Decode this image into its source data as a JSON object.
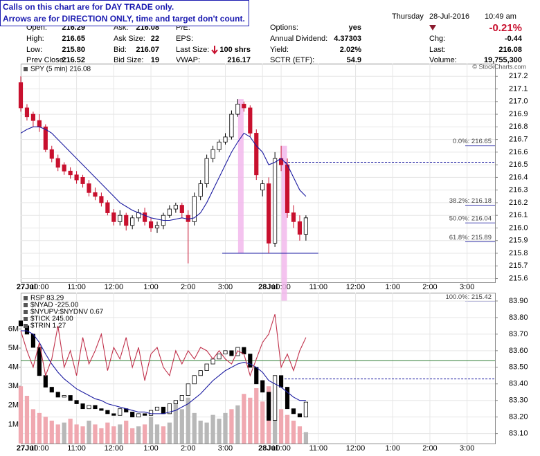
{
  "header": {
    "notes": [
      "Calls on this chart are for DAY TRADE only.",
      "Arrows are for DIRECTION ONLY, time and target don't count."
    ],
    "columns": [
      [
        {
          "label": "Open:",
          "value": "216.29"
        },
        {
          "label": "High:",
          "value": "216.65"
        },
        {
          "label": "Low:",
          "value": "215.80"
        },
        {
          "label": "Prev Close:",
          "value": "216.52"
        }
      ],
      [
        {
          "label": "Ask:",
          "value": "216.08"
        },
        {
          "label": "Ask Size:",
          "value": "22"
        },
        {
          "label": "Bid:",
          "value": "216.07"
        },
        {
          "label": "Bid Size:",
          "value": "19"
        }
      ],
      [
        {
          "label": "P/E:"
        },
        {
          "label": "EPS:"
        },
        {
          "label": "Last Size:",
          "value": "100 shrs"
        },
        {
          "label": "VWAP:",
          "value": "216.17"
        }
      ],
      [
        {
          "label": "Options:",
          "value": "yes"
        },
        {
          "label": "Annual Dividend:",
          "value": "4.37303"
        },
        {
          "label": "Yield:",
          "value": "2.02%"
        },
        {
          "label": "SCTR (ETF):",
          "value": "54.9"
        }
      ]
    ],
    "date": [
      "Thursday",
      "28-Jul-2016",
      "10:49 am"
    ],
    "change_pct": "-0.21%",
    "right": [
      {
        "label": "Chg:",
        "value": "-0.44"
      },
      {
        "label": "Last:",
        "value": "216.08"
      },
      {
        "label": "Volume:",
        "value": "19,755,300"
      }
    ],
    "credit": "© StockCharts.com"
  },
  "chart_data": [
    {
      "type": "candlestick",
      "legend": [
        "SPY (5 min) 216.08"
      ],
      "x": [
        0,
        2,
        4,
        6,
        8,
        10,
        12,
        14,
        16,
        18,
        20,
        22,
        24,
        26,
        28,
        30,
        32,
        34,
        36,
        38,
        40,
        42,
        44,
        46,
        48,
        50,
        52,
        54,
        56,
        58,
        60,
        62,
        64,
        66,
        68,
        70,
        72,
        74,
        76,
        78,
        80,
        82,
        84,
        86,
        88,
        90,
        92
      ],
      "open": [
        217.15,
        216.95,
        216.9,
        216.85,
        216.8,
        216.62,
        216.55,
        216.5,
        216.45,
        216.42,
        216.4,
        216.35,
        216.28,
        216.25,
        216.2,
        216.12,
        216.05,
        216.1,
        216.02,
        216.08,
        216.12,
        216.05,
        216.0,
        216.02,
        216.1,
        216.15,
        216.18,
        216.1,
        216.05,
        216.25,
        216.35,
        216.55,
        216.62,
        216.68,
        216.72,
        216.9,
        216.98,
        216.95,
        216.75,
        216.3,
        216.35,
        215.88,
        216.55,
        216.5,
        216.12,
        216.05,
        215.95
      ],
      "high": [
        217.2,
        216.98,
        216.92,
        216.9,
        216.82,
        216.65,
        216.58,
        216.52,
        216.48,
        216.45,
        216.42,
        216.38,
        216.32,
        216.28,
        216.22,
        216.15,
        216.14,
        216.12,
        216.1,
        216.15,
        216.16,
        216.08,
        216.05,
        216.12,
        216.18,
        216.2,
        216.2,
        216.14,
        216.28,
        216.38,
        216.58,
        216.65,
        216.7,
        216.75,
        216.93,
        217.02,
        217.0,
        216.97,
        216.78,
        216.38,
        216.4,
        216.6,
        216.65,
        216.55,
        216.18,
        216.1,
        216.1
      ],
      "low": [
        216.92,
        216.85,
        216.8,
        216.76,
        216.6,
        216.52,
        216.45,
        216.42,
        216.39,
        216.35,
        216.32,
        216.25,
        216.22,
        216.17,
        216.1,
        216.02,
        216.02,
        215.98,
        215.99,
        216.05,
        216.02,
        215.97,
        215.96,
        215.99,
        216.08,
        216.12,
        216.08,
        215.72,
        216.02,
        216.22,
        216.32,
        216.52,
        216.6,
        216.66,
        216.7,
        216.88,
        216.92,
        216.72,
        216.38,
        216.25,
        215.8,
        215.85,
        216.45,
        216.08,
        216.0,
        215.9,
        215.9
      ],
      "close": [
        216.95,
        216.88,
        216.85,
        216.8,
        216.62,
        216.55,
        216.48,
        216.45,
        216.42,
        216.38,
        216.35,
        216.28,
        216.25,
        216.2,
        216.12,
        216.05,
        216.1,
        216.02,
        216.08,
        216.12,
        216.05,
        216.0,
        216.02,
        216.1,
        216.15,
        216.18,
        216.12,
        216.05,
        216.25,
        216.35,
        216.55,
        216.62,
        216.68,
        216.72,
        216.9,
        216.98,
        216.95,
        216.75,
        216.42,
        216.35,
        215.88,
        216.55,
        216.5,
        216.12,
        216.05,
        215.95,
        216.08
      ],
      "up_color": "#ffffff",
      "down_color": "#c8102e",
      "lines_series": [
        {
          "color": "#1a1aa0",
          "values": [
            216.75,
            216.78,
            216.8,
            216.8,
            216.78,
            216.75,
            216.7,
            216.65,
            216.6,
            216.55,
            216.5,
            216.45,
            216.4,
            216.35,
            216.3,
            216.25,
            216.2,
            216.17,
            216.14,
            216.12,
            216.1,
            216.08,
            216.07,
            216.06,
            216.06,
            216.07,
            216.08,
            216.07,
            216.08,
            216.12,
            216.2,
            216.3,
            216.4,
            216.5,
            216.6,
            216.68,
            216.75,
            216.72,
            216.65,
            216.6,
            216.5,
            216.52,
            216.55,
            216.5,
            216.4,
            216.3,
            216.25
          ]
        }
      ],
      "xlim": [
        0,
        153
      ],
      "xticks": [
        {
          "value": 0,
          "label": "27Jul"
        },
        {
          "value": 6,
          "label": "10:00"
        },
        {
          "value": 18,
          "label": "11:00"
        },
        {
          "value": 30,
          "label": "12:00"
        },
        {
          "value": 42,
          "label": "1:00"
        },
        {
          "value": 54,
          "label": "2:00"
        },
        {
          "value": 66,
          "label": "3:00"
        },
        {
          "value": 78,
          "label": "28Jul"
        },
        {
          "value": 84,
          "label": "10:00"
        },
        {
          "value": 96,
          "label": "11:00"
        },
        {
          "value": 108,
          "label": "12:00"
        },
        {
          "value": 120,
          "label": "1:00"
        },
        {
          "value": 132,
          "label": "2:00"
        },
        {
          "value": 144,
          "label": "3:00"
        }
      ],
      "ylim": [
        215.57,
        217.3
      ],
      "yticks": [
        217.2,
        217.1,
        {
          "value": 217,
          "label": "217.0"
        },
        216.9,
        216.8,
        216.7,
        216.6,
        216.5,
        216.4,
        216.3,
        216.2,
        216.1,
        {
          "value": 216,
          "label": "216.0"
        },
        215.9,
        215.8,
        215.7,
        215.6
      ],
      "grid": true,
      "levels": [
        {
          "value": 216.65,
          "label": "0.0%: 216.65"
        },
        {
          "value": 216.18,
          "label": "38.2%: 216.18"
        },
        {
          "value": 216.04,
          "label": "50.0%: 216.04"
        },
        {
          "value": 215.89,
          "label": "61.8%: 215.89"
        },
        {
          "value": 215.42,
          "label": "100.0%: 215.42"
        }
      ],
      "hlines": [
        {
          "y": 215.8,
          "x": [
            65,
            96
          ],
          "dash": false,
          "color": "#1a1aa0"
        },
        {
          "y": 216.52,
          "x": [
            84,
            153
          ],
          "dash": true,
          "color": "#1a1aa0"
        }
      ],
      "highlights": [
        {
          "x": 71,
          "y": [
            215.8,
            217.02
          ]
        },
        {
          "x": 85,
          "y": [
            215.42,
            216.65
          ]
        }
      ]
    },
    {
      "type": "candlestick",
      "legend": [
        "RSP 83.29",
        "$NYAD -225.00",
        "$NYUPV:$NYDNV 0.67",
        "$TICK 245.00",
        "$TRIN 1.27"
      ],
      "x": [
        0,
        2,
        4,
        6,
        8,
        10,
        12,
        14,
        16,
        18,
        20,
        22,
        24,
        26,
        28,
        30,
        32,
        34,
        36,
        38,
        40,
        42,
        44,
        46,
        48,
        50,
        52,
        54,
        56,
        58,
        60,
        62,
        64,
        66,
        68,
        70,
        72,
        74,
        76,
        78,
        80,
        82,
        84,
        86,
        88,
        90,
        92
      ],
      "open": [
        83.78,
        83.75,
        83.7,
        83.62,
        83.45,
        83.38,
        83.35,
        83.32,
        83.33,
        83.3,
        83.28,
        83.25,
        83.27,
        83.25,
        83.24,
        83.22,
        83.21,
        83.25,
        83.23,
        83.2,
        83.22,
        83.21,
        83.24,
        83.26,
        83.22,
        83.28,
        83.3,
        83.33,
        83.4,
        83.45,
        83.48,
        83.52,
        83.55,
        83.58,
        83.6,
        83.57,
        83.62,
        83.58,
        83.5,
        83.42,
        83.35,
        83.18,
        83.45,
        83.38,
        83.25,
        83.22,
        83.2
      ],
      "close": [
        83.75,
        83.7,
        83.62,
        83.45,
        83.38,
        83.35,
        83.32,
        83.33,
        83.3,
        83.28,
        83.25,
        83.27,
        83.25,
        83.24,
        83.22,
        83.21,
        83.25,
        83.23,
        83.2,
        83.22,
        83.21,
        83.24,
        83.26,
        83.22,
        83.28,
        83.3,
        83.33,
        83.4,
        83.45,
        83.48,
        83.52,
        83.55,
        83.58,
        83.6,
        83.57,
        83.62,
        83.58,
        83.5,
        83.4,
        83.35,
        83.18,
        83.45,
        83.38,
        83.25,
        83.22,
        83.2,
        83.29
      ],
      "up_color": "#ffffff",
      "down_color": "#000000",
      "lines_series": [
        {
          "color": "#1a1aa0",
          "values": [
            83.72,
            83.72,
            83.7,
            83.65,
            83.58,
            83.52,
            83.47,
            83.43,
            83.4,
            83.37,
            83.35,
            83.33,
            83.31,
            83.3,
            83.28,
            83.27,
            83.26,
            83.25,
            83.24,
            83.23,
            83.23,
            83.22,
            83.22,
            83.22,
            83.23,
            83.24,
            83.26,
            83.28,
            83.31,
            83.34,
            83.38,
            83.42,
            83.45,
            83.48,
            83.5,
            83.52,
            83.53,
            83.52,
            83.5,
            83.47,
            83.42,
            83.4,
            83.38,
            83.35,
            83.32,
            83.3,
            83.3
          ]
        },
        {
          "color": "#c0304a",
          "values": [
            83.72,
            83.6,
            83.5,
            83.65,
            83.45,
            83.55,
            83.75,
            83.5,
            83.6,
            83.45,
            83.68,
            83.52,
            83.6,
            83.7,
            83.48,
            83.62,
            83.55,
            83.68,
            83.5,
            83.62,
            83.42,
            83.58,
            83.62,
            83.5,
            83.45,
            83.6,
            83.52,
            83.6,
            83.55,
            83.62,
            83.6,
            83.55,
            83.6,
            83.55,
            83.52,
            83.6,
            83.58,
            83.45,
            83.55,
            83.65,
            83.7,
            83.82,
            83.5,
            83.58,
            83.48,
            83.6,
            83.68
          ]
        }
      ],
      "volume": [
        3000000,
        2500000,
        1800000,
        1600000,
        1400000,
        1200000,
        1000000,
        1100000,
        1300000,
        1000000,
        900000,
        1200000,
        1000000,
        800000,
        1100000,
        900000,
        1000000,
        1200000,
        800000,
        900000,
        1000000,
        1400000,
        1000000,
        900000,
        1100000,
        2200000,
        1800000,
        2400000,
        1600000,
        1200000,
        1100000,
        1500000,
        1300000,
        1600000,
        1800000,
        2000000,
        2600000,
        2400000,
        2900000,
        2200000,
        3000000,
        2800000,
        1800000,
        1500000,
        1200000,
        900000,
        600000
      ],
      "volume_colors": [
        "#b8b8b8",
        "#f0a8b0"
      ],
      "xlim": [
        0,
        153
      ],
      "xticks": [
        {
          "value": 0,
          "label": "27Jul"
        },
        {
          "value": 6,
          "label": "10:00"
        },
        {
          "value": 18,
          "label": "11:00"
        },
        {
          "value": 30,
          "label": "12:00"
        },
        {
          "value": 42,
          "label": "1:00"
        },
        {
          "value": 54,
          "label": "2:00"
        },
        {
          "value": 66,
          "label": "3:00"
        },
        {
          "value": 78,
          "label": "28Jul"
        },
        {
          "value": 84,
          "label": "10:00"
        },
        {
          "value": 96,
          "label": "11:00"
        },
        {
          "value": 108,
          "label": "12:00"
        },
        {
          "value": 120,
          "label": "1:00"
        },
        {
          "value": 132,
          "label": "2:00"
        },
        {
          "value": 144,
          "label": "3:00"
        }
      ],
      "ylim": [
        83.04,
        83.95
      ],
      "yticks": [
        {
          "value": 83.9,
          "label": "83.90"
        },
        {
          "value": 83.8,
          "label": "83.80"
        },
        {
          "value": 83.7,
          "label": "83.70"
        },
        {
          "value": 83.6,
          "label": "83.60"
        },
        {
          "value": 83.5,
          "label": "83.50"
        },
        {
          "value": 83.4,
          "label": "83.40"
        },
        {
          "value": 83.3,
          "label": "83.30"
        },
        {
          "value": 83.2,
          "label": "83.20"
        },
        {
          "value": 83.1,
          "label": "83.10"
        }
      ],
      "y2lim": [
        0,
        7900000
      ],
      "y2ticks": [
        {
          "value": 1000000,
          "label": "1M"
        },
        {
          "value": 2000000,
          "label": "2M"
        },
        {
          "value": 3000000,
          "label": "3M"
        },
        {
          "value": 4000000,
          "label": "4M"
        },
        {
          "value": 5000000,
          "label": "5M"
        },
        {
          "value": 6000000,
          "label": "6M"
        }
      ],
      "grid": true,
      "hlines": [
        {
          "y": 83.54,
          "x": [
            0,
            153
          ],
          "dash": false,
          "color": "#2e7d32"
        },
        {
          "y": 83.43,
          "x": [
            84,
            153
          ],
          "dash": true,
          "color": "#1a1aa0"
        }
      ]
    }
  ]
}
